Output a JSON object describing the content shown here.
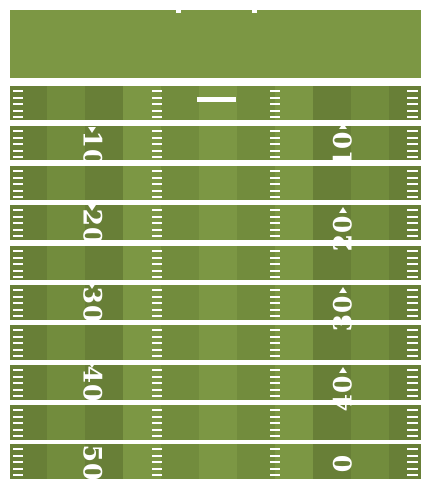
{
  "field": {
    "colors": {
      "light_grass": "#7c9744",
      "dark_grass": "#687f37",
      "mid_grass": "#728c3d",
      "line": "#ffffff",
      "background": "#ffffff"
    },
    "yard_numbers_left": [
      "10",
      "20",
      "30",
      "40",
      "50"
    ],
    "yard_numbers_right": [
      "10",
      "20",
      "30",
      "40",
      "0"
    ],
    "arrow_directions_left": [
      "up",
      "up",
      "up",
      "up",
      "none"
    ],
    "arrow_directions_right": [
      "down",
      "down",
      "down",
      "down",
      "none"
    ]
  }
}
